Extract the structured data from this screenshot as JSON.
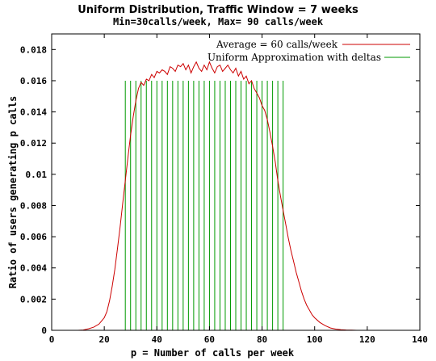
{
  "chart_data": {
    "type": "line",
    "title": "Uniform Distribution, Traffic Window = 7 weeks",
    "subtitle": "Min=30calls/week, Max= 90 calls/week",
    "xlabel": "p = Number of calls per week",
    "ylabel": "Ratio of users generating p calls",
    "xlim": [
      0,
      140
    ],
    "ylim": [
      0,
      0.019
    ],
    "x_ticks": [
      0,
      20,
      40,
      60,
      80,
      100,
      120,
      140
    ],
    "x_tick_labels": [
      "0",
      "20",
      "40",
      "60",
      "80",
      "100",
      "120",
      "140"
    ],
    "y_ticks": [
      0,
      0.002,
      0.004,
      0.006,
      0.008,
      0.01,
      0.012,
      0.014,
      0.016,
      0.018
    ],
    "y_tick_labels": [
      "0",
      "0.002",
      "0.004",
      "0.006",
      "0.008",
      "0.01",
      "0.012",
      "0.014",
      "0.016",
      "0.018"
    ],
    "grid": false,
    "legend_position": "top-right",
    "series": [
      {
        "name": "Average = 60 calls/week",
        "color": "#cc0000",
        "x": [
          10,
          12,
          14,
          16,
          18,
          20,
          21,
          22,
          23,
          24,
          25,
          26,
          27,
          28,
          29,
          30,
          31,
          32,
          33,
          34,
          35,
          36,
          37,
          38,
          39,
          40,
          41,
          42,
          43,
          44,
          45,
          46,
          47,
          48,
          49,
          50,
          51,
          52,
          53,
          54,
          55,
          56,
          57,
          58,
          59,
          60,
          61,
          62,
          63,
          64,
          65,
          66,
          67,
          68,
          69,
          70,
          71,
          72,
          73,
          74,
          75,
          76,
          77,
          78,
          79,
          80,
          81,
          82,
          83,
          84,
          85,
          86,
          87,
          88,
          89,
          90,
          91,
          92,
          93,
          94,
          95,
          96,
          97,
          98,
          99,
          100,
          102,
          104,
          106,
          108,
          110,
          112,
          114,
          116,
          118
        ],
        "y": [
          0,
          2e-05,
          0.0001,
          0.0002,
          0.0004,
          0.0008,
          0.0012,
          0.0019,
          0.0028,
          0.0039,
          0.0052,
          0.0066,
          0.0081,
          0.0096,
          0.0111,
          0.0125,
          0.0137,
          0.0147,
          0.0155,
          0.0159,
          0.0157,
          0.0161,
          0.016,
          0.0164,
          0.0162,
          0.0166,
          0.0165,
          0.0167,
          0.0166,
          0.0164,
          0.0169,
          0.0168,
          0.0166,
          0.017,
          0.0169,
          0.0171,
          0.0167,
          0.017,
          0.0165,
          0.0169,
          0.0172,
          0.0168,
          0.0166,
          0.017,
          0.0167,
          0.0172,
          0.0168,
          0.0165,
          0.0169,
          0.017,
          0.0166,
          0.0168,
          0.017,
          0.0167,
          0.0165,
          0.0168,
          0.0163,
          0.0166,
          0.0161,
          0.0163,
          0.0158,
          0.016,
          0.0155,
          0.0152,
          0.0149,
          0.0144,
          0.0141,
          0.0135,
          0.0127,
          0.0118,
          0.0108,
          0.0096,
          0.0086,
          0.0077,
          0.0068,
          0.0059,
          0.0051,
          0.0044,
          0.0037,
          0.0031,
          0.0025,
          0.002,
          0.0016,
          0.0013,
          0.001,
          0.0008,
          0.0005,
          0.0003,
          0.00015,
          8e-05,
          4e-05,
          2e-05,
          1e-05,
          0,
          0
        ]
      },
      {
        "name": "Uniform Approximation with deltas",
        "color": "#009900",
        "type": "impulse",
        "x": [
          28,
          30,
          32,
          34,
          36,
          38,
          40,
          42,
          44,
          46,
          48,
          50,
          52,
          54,
          56,
          58,
          60,
          62,
          64,
          66,
          68,
          70,
          72,
          74,
          76,
          78,
          80,
          82,
          84,
          86,
          88
        ],
        "y": [
          0.016,
          0.016,
          0.016,
          0.016,
          0.016,
          0.016,
          0.016,
          0.016,
          0.016,
          0.016,
          0.016,
          0.016,
          0.016,
          0.016,
          0.016,
          0.016,
          0.016,
          0.016,
          0.016,
          0.016,
          0.016,
          0.016,
          0.016,
          0.016,
          0.016,
          0.016,
          0.016,
          0.016,
          0.016,
          0.016,
          0.016
        ]
      }
    ]
  }
}
